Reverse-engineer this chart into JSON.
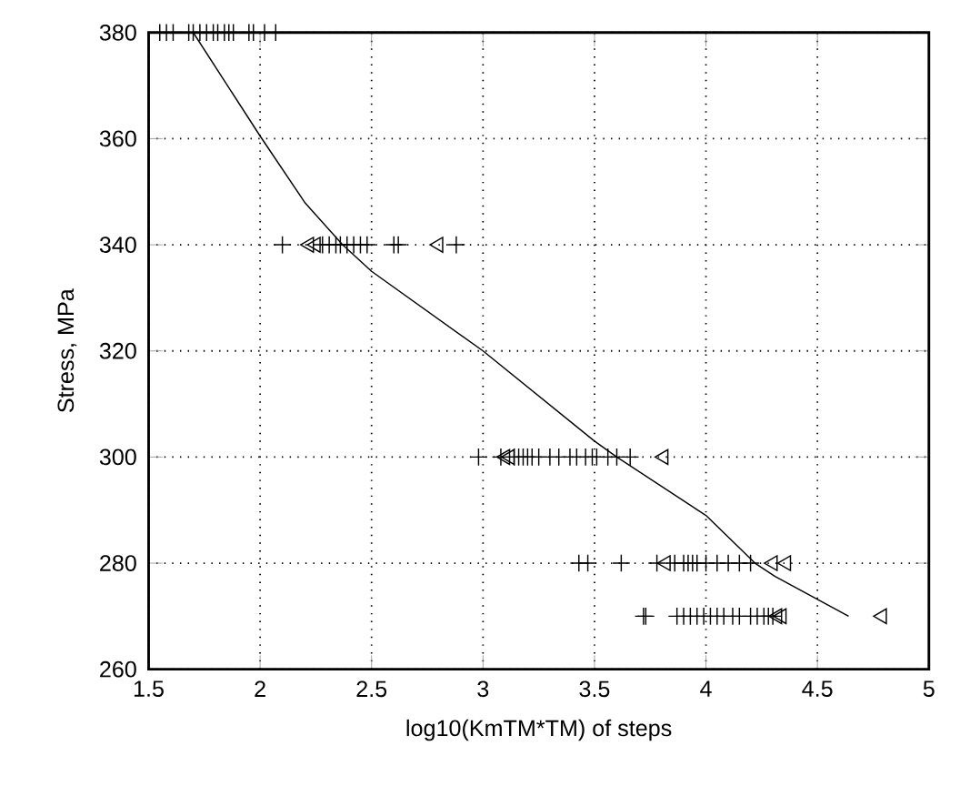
{
  "chart_data": {
    "type": "scatter",
    "xlabel": "log10(KmTM*TM) of steps",
    "ylabel": "Stress, MPa",
    "xlim": [
      1.5,
      5
    ],
    "ylim": [
      260,
      380
    ],
    "xticks": [
      1.5,
      2,
      2.5,
      3,
      3.5,
      4,
      4.5,
      5
    ],
    "yticks": [
      260,
      280,
      300,
      320,
      340,
      360,
      380
    ],
    "grid": true,
    "series": [
      {
        "type": "scatter",
        "marker": "cross",
        "color": "#000000",
        "x": [
          1.55,
          1.58,
          1.61,
          1.68,
          1.7,
          1.73,
          1.76,
          1.79,
          1.81,
          1.84,
          1.86,
          1.88,
          1.95,
          1.97,
          2.02,
          2.07,
          2.1,
          2.28,
          2.31,
          2.34,
          2.36,
          2.39,
          2.42,
          2.45,
          2.48,
          2.6,
          2.62,
          2.88,
          2.98,
          3.08,
          3.14,
          3.16,
          3.18,
          3.2,
          3.22,
          3.25,
          3.3,
          3.34,
          3.39,
          3.42,
          3.46,
          3.49,
          3.51,
          3.56,
          3.6,
          3.66,
          3.43,
          3.47,
          3.62,
          3.78,
          3.86,
          3.9,
          3.92,
          3.94,
          3.96,
          4.0,
          4.05,
          4.1,
          4.15,
          4.2,
          3.72,
          3.73,
          3.87,
          3.9,
          3.93,
          3.96,
          3.99,
          4.02,
          4.05,
          4.08,
          4.12,
          4.15,
          4.2,
          4.23,
          4.26,
          4.28,
          4.3
        ],
        "values": [
          380,
          380,
          380,
          380,
          380,
          380,
          380,
          380,
          380,
          380,
          380,
          380,
          380,
          380,
          380,
          380,
          340,
          340,
          340,
          340,
          340,
          340,
          340,
          340,
          340,
          340,
          340,
          340,
          300,
          300,
          300,
          300,
          300,
          300,
          300,
          300,
          300,
          300,
          300,
          300,
          300,
          300,
          300,
          300,
          300,
          300,
          280,
          280,
          280,
          280,
          280,
          280,
          280,
          280,
          280,
          280,
          280,
          280,
          280,
          280,
          270,
          270,
          270,
          270,
          270,
          270,
          270,
          270,
          270,
          270,
          270,
          270,
          270,
          270,
          270,
          270,
          270
        ]
      },
      {
        "type": "scatter",
        "marker": "triangle",
        "color": "#000000",
        "x": [
          2.22,
          2.25,
          2.8,
          3.1,
          3.12,
          3.81,
          3.82,
          4.3,
          4.36,
          4.32,
          4.34,
          4.79
        ],
        "values": [
          340,
          340,
          340,
          300,
          300,
          300,
          280,
          280,
          280,
          270,
          270,
          270
        ]
      },
      {
        "type": "line",
        "marker": "none",
        "line_style": "solid",
        "color": "#000000",
        "x": [
          1.7,
          2.0,
          2.2,
          2.37,
          2.5,
          3.0,
          3.5,
          3.6,
          4.0,
          4.22,
          4.31,
          4.64
        ],
        "values": [
          380,
          360.5,
          348,
          340,
          335,
          320,
          303,
          300,
          289,
          280,
          277.5,
          270
        ]
      }
    ]
  }
}
